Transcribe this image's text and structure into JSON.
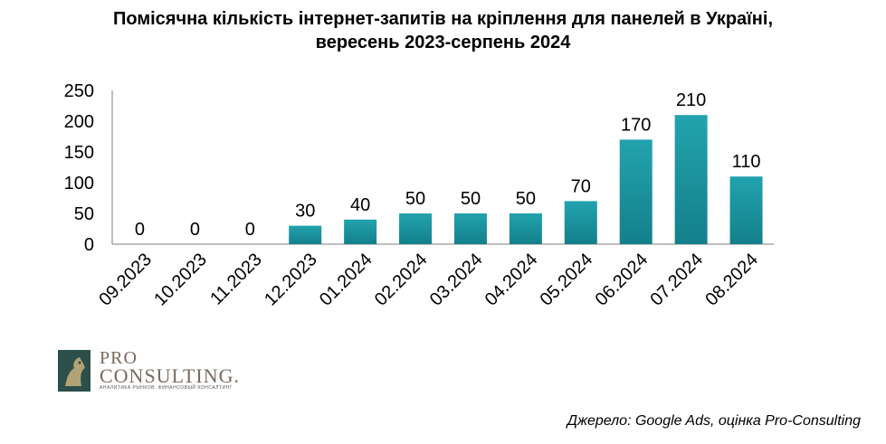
{
  "title_line1": "Помісячна кількість інтернет-запитів на кріплення для панелей в Україні,",
  "title_line2": "вересень 2023-серпень 2024",
  "source": "Джерело: Google Ads, оцінка Pro-Consulting",
  "logo": {
    "pro": "PRO",
    "consulting": "CONSULTING.",
    "tagline": "АНАЛИТИКА РЫНКОВ. ФИНАНСОВЫЙ КОНСАЛТИНГ",
    "icon": "horse-logo-icon"
  },
  "colors": {
    "bar": "#1e9aa6",
    "bar_dark": "#17808b",
    "axis": "#7f7f7f"
  },
  "chart_data": {
    "type": "bar",
    "title": "Помісячна кількість інтернет-запитів на кріплення для панелей в Україні, вересень 2023-серпень 2024",
    "categories": [
      "09.2023",
      "10.2023",
      "11.2023",
      "12.2023",
      "01.2024",
      "02.2024",
      "03.2024",
      "04.2024",
      "05.2024",
      "06.2024",
      "07.2024",
      "08.2024"
    ],
    "values": [
      0,
      0,
      0,
      30,
      40,
      50,
      50,
      50,
      70,
      170,
      210,
      110
    ],
    "data_labels": [
      "0",
      "0",
      "0",
      "30",
      "40",
      "50",
      "50",
      "50",
      "70",
      "170",
      "210",
      "110"
    ],
    "ylim": [
      0,
      250
    ],
    "yticks": [
      0,
      50,
      100,
      150,
      200,
      250
    ],
    "grid": false,
    "legend": "none"
  }
}
